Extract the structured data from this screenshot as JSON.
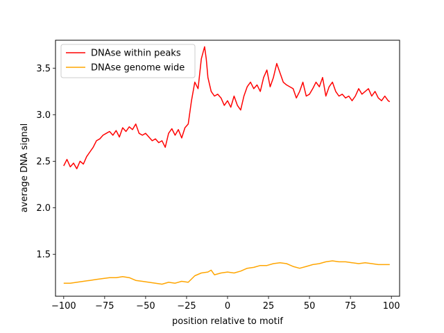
{
  "chart_data": {
    "type": "line",
    "xlabel": "position relative to motif",
    "ylabel": "average DNA signal",
    "xlim": [
      -105,
      105
    ],
    "ylim": [
      1.05,
      3.8
    ],
    "grid": false,
    "legend_position": "top-left",
    "x_ticks": [
      -100,
      -75,
      -50,
      -25,
      0,
      25,
      50,
      75,
      100
    ],
    "x_tick_labels": [
      "−100",
      "−75",
      "−50",
      "−25",
      "0",
      "25",
      "50",
      "75",
      "100"
    ],
    "y_ticks": [
      1.5,
      2.0,
      2.5,
      3.0,
      3.5
    ],
    "y_tick_labels": [
      "1.5",
      "2.0",
      "2.5",
      "3.0",
      "3.5"
    ],
    "series": [
      {
        "name": "DNAse within peaks",
        "color": "#ff0000",
        "x": [
          -100,
          -98,
          -96,
          -94,
          -92,
          -90,
          -88,
          -86,
          -84,
          -82,
          -80,
          -78,
          -76,
          -74,
          -72,
          -70,
          -68,
          -66,
          -64,
          -62,
          -60,
          -58,
          -56,
          -54,
          -52,
          -50,
          -48,
          -46,
          -44,
          -42,
          -40,
          -38,
          -36,
          -34,
          -32,
          -30,
          -28,
          -26,
          -24,
          -22,
          -20,
          -18,
          -16,
          -14,
          -13,
          -12,
          -10,
          -8,
          -6,
          -4,
          -2,
          0,
          2,
          4,
          6,
          8,
          10,
          12,
          14,
          16,
          18,
          20,
          22,
          24,
          26,
          28,
          30,
          32,
          34,
          36,
          38,
          40,
          42,
          44,
          46,
          48,
          50,
          52,
          54,
          56,
          58,
          60,
          62,
          64,
          66,
          68,
          70,
          72,
          74,
          76,
          78,
          80,
          82,
          84,
          86,
          88,
          90,
          92,
          94,
          96,
          98,
          99
        ],
        "y": [
          2.45,
          2.52,
          2.44,
          2.48,
          2.42,
          2.5,
          2.47,
          2.55,
          2.6,
          2.65,
          2.72,
          2.74,
          2.78,
          2.8,
          2.82,
          2.78,
          2.83,
          2.76,
          2.86,
          2.82,
          2.87,
          2.84,
          2.9,
          2.8,
          2.78,
          2.8,
          2.76,
          2.72,
          2.74,
          2.7,
          2.72,
          2.65,
          2.8,
          2.85,
          2.78,
          2.84,
          2.75,
          2.86,
          2.9,
          3.15,
          3.35,
          3.28,
          3.6,
          3.73,
          3.6,
          3.4,
          3.25,
          3.2,
          3.22,
          3.18,
          3.1,
          3.15,
          3.08,
          3.2,
          3.1,
          3.05,
          3.2,
          3.3,
          3.35,
          3.28,
          3.32,
          3.25,
          3.4,
          3.48,
          3.3,
          3.4,
          3.55,
          3.45,
          3.35,
          3.32,
          3.3,
          3.28,
          3.18,
          3.25,
          3.35,
          3.2,
          3.22,
          3.28,
          3.35,
          3.3,
          3.4,
          3.2,
          3.3,
          3.35,
          3.25,
          3.2,
          3.22,
          3.18,
          3.2,
          3.15,
          3.2,
          3.28,
          3.22,
          3.25,
          3.28,
          3.2,
          3.25,
          3.18,
          3.15,
          3.2,
          3.15,
          3.14
        ]
      },
      {
        "name": "DNAse genome wide",
        "color": "#ffa500",
        "x": [
          -100,
          -96,
          -92,
          -88,
          -84,
          -80,
          -76,
          -72,
          -68,
          -64,
          -60,
          -56,
          -52,
          -48,
          -44,
          -40,
          -36,
          -32,
          -28,
          -24,
          -20,
          -16,
          -12,
          -10,
          -8,
          -4,
          0,
          4,
          8,
          12,
          16,
          20,
          24,
          28,
          32,
          36,
          40,
          44,
          48,
          52,
          56,
          60,
          64,
          68,
          72,
          76,
          80,
          84,
          88,
          92,
          96,
          99
        ],
        "y": [
          1.19,
          1.19,
          1.2,
          1.21,
          1.22,
          1.23,
          1.24,
          1.25,
          1.25,
          1.26,
          1.25,
          1.22,
          1.21,
          1.2,
          1.19,
          1.18,
          1.2,
          1.19,
          1.21,
          1.2,
          1.27,
          1.3,
          1.31,
          1.33,
          1.28,
          1.3,
          1.31,
          1.3,
          1.32,
          1.35,
          1.36,
          1.38,
          1.38,
          1.4,
          1.41,
          1.4,
          1.37,
          1.35,
          1.37,
          1.39,
          1.4,
          1.42,
          1.43,
          1.42,
          1.42,
          1.41,
          1.4,
          1.41,
          1.4,
          1.39,
          1.39,
          1.39
        ]
      }
    ]
  }
}
